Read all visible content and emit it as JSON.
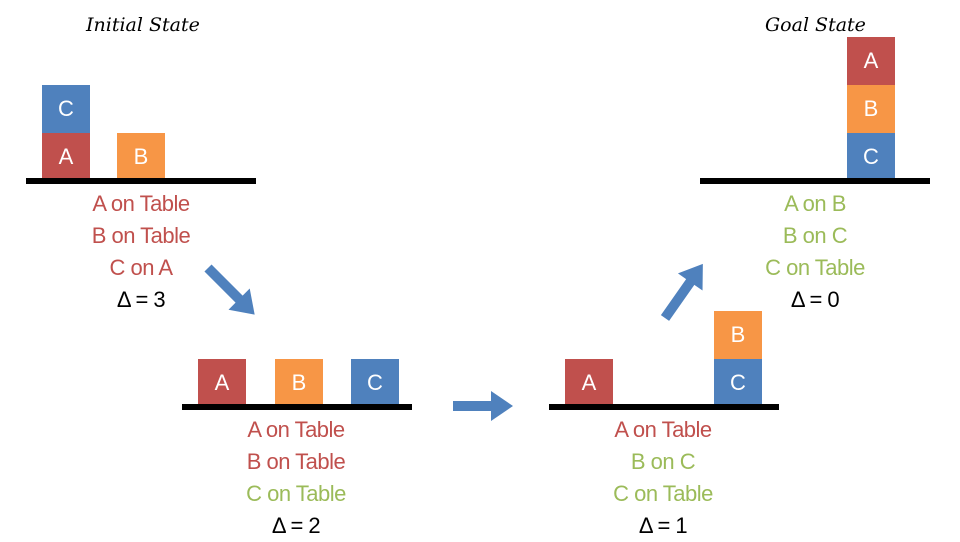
{
  "colors": {
    "red_block": "#c0504d",
    "orange_block": "#f79646",
    "blue_block": "#4f81bd",
    "unsatisfied_text": "#c0504d",
    "satisfied_text": "#9bbb59",
    "arrow": "#4f81bd"
  },
  "titles": {
    "initial": "Initial State",
    "goal": "Goal State"
  },
  "states": [
    {
      "name": "initial",
      "blocks": [
        "C",
        "A",
        "B"
      ],
      "facts": [
        {
          "text": "A on Table",
          "satisfied": false
        },
        {
          "text": "B on Table",
          "satisfied": false
        },
        {
          "text": "C on A",
          "satisfied": false
        }
      ],
      "delta": "Δ = 3"
    },
    {
      "name": "step-1",
      "blocks": [
        "A",
        "B",
        "C"
      ],
      "facts": [
        {
          "text": "A on Table",
          "satisfied": false
        },
        {
          "text": "B on Table",
          "satisfied": false
        },
        {
          "text": "C on Table",
          "satisfied": true
        }
      ],
      "delta": "Δ = 2"
    },
    {
      "name": "step-2",
      "blocks": [
        "A",
        "B",
        "C"
      ],
      "facts": [
        {
          "text": "A on Table",
          "satisfied": false
        },
        {
          "text": "B on C",
          "satisfied": true
        },
        {
          "text": "C on Table",
          "satisfied": true
        }
      ],
      "delta": "Δ = 1"
    },
    {
      "name": "goal",
      "blocks": [
        "A",
        "B",
        "C"
      ],
      "facts": [
        {
          "text": "A on B",
          "satisfied": true
        },
        {
          "text": "B on C",
          "satisfied": true
        },
        {
          "text": "C on Table",
          "satisfied": true
        }
      ],
      "delta": "Δ = 0"
    }
  ]
}
